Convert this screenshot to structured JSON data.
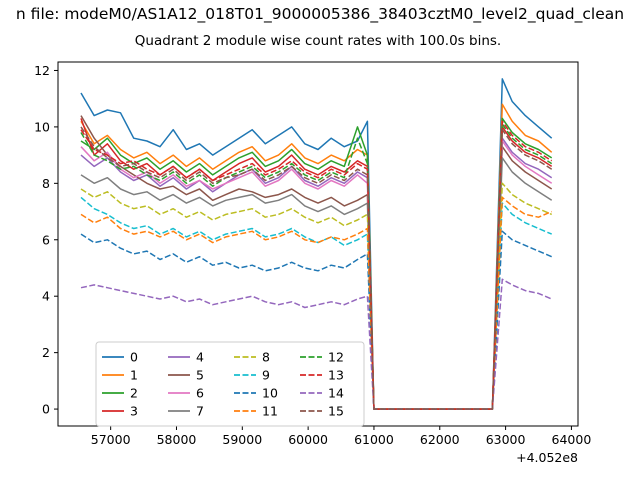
{
  "window": {
    "suptitle_visible_text": "n file: modeM0/AS1A12_018T01_9000005386_38403cztM0_level2_quad_clean"
  },
  "chart_data": {
    "type": "line",
    "title": "Quadrant 2 module wise count rates with 100.0s bins.",
    "xlabel": "",
    "ylabel": "",
    "x_offset_label": "+4.052e8",
    "xlim": [
      56200,
      64100
    ],
    "ylim": [
      -0.6,
      12.3
    ],
    "xticks": [
      57000,
      58000,
      59000,
      60000,
      61000,
      62000,
      63000,
      64000
    ],
    "yticks": [
      0,
      2,
      4,
      6,
      8,
      10,
      12
    ],
    "grid": false,
    "legend": {
      "position": "lower left inside",
      "columns": 4,
      "rows": 4
    },
    "x": [
      56550,
      56750,
      56950,
      57150,
      57350,
      57550,
      57750,
      57950,
      58150,
      58350,
      58550,
      58750,
      58950,
      59150,
      59350,
      59550,
      59750,
      59950,
      60150,
      60350,
      60550,
      60750,
      60900,
      61000,
      61500,
      62000,
      62500,
      62800,
      62950,
      63100,
      63300,
      63500,
      63700
    ],
    "series": [
      {
        "name": "0",
        "color": "#1f77b4",
        "dashed": false,
        "values": [
          11.2,
          10.4,
          10.6,
          10.5,
          9.6,
          9.5,
          9.3,
          9.9,
          9.2,
          9.4,
          9.0,
          9.3,
          9.6,
          9.9,
          9.4,
          9.7,
          10.0,
          9.4,
          9.2,
          9.6,
          9.3,
          9.5,
          10.2,
          0,
          0,
          0,
          0,
          0,
          11.7,
          10.9,
          10.4,
          10.0,
          9.6
        ]
      },
      {
        "name": "1",
        "color": "#ff7f0e",
        "dashed": false,
        "values": [
          10.2,
          9.4,
          9.7,
          9.2,
          8.9,
          9.1,
          8.7,
          9.0,
          8.6,
          8.9,
          8.5,
          8.8,
          9.1,
          9.3,
          8.8,
          9.0,
          9.4,
          8.9,
          8.7,
          9.0,
          8.8,
          9.2,
          9.0,
          0,
          0,
          0,
          0,
          0,
          10.8,
          10.2,
          9.7,
          9.5,
          9.1
        ]
      },
      {
        "name": "2",
        "color": "#2ca02c",
        "dashed": false,
        "values": [
          9.5,
          9.2,
          9.6,
          9.0,
          8.7,
          8.9,
          8.5,
          8.8,
          8.4,
          8.7,
          8.3,
          8.6,
          8.9,
          9.1,
          8.6,
          8.8,
          9.2,
          8.7,
          8.5,
          8.8,
          8.6,
          10.0,
          9.0,
          0,
          0,
          0,
          0,
          0,
          10.3,
          9.8,
          9.4,
          9.2,
          8.9
        ]
      },
      {
        "name": "3",
        "color": "#d62728",
        "dashed": false,
        "values": [
          10.3,
          9.0,
          9.4,
          8.8,
          8.5,
          8.7,
          8.3,
          8.6,
          8.2,
          8.5,
          8.1,
          8.4,
          8.7,
          8.9,
          8.4,
          8.6,
          9.0,
          8.5,
          8.3,
          8.6,
          8.4,
          8.8,
          8.6,
          0,
          0,
          0,
          0,
          0,
          10.0,
          9.5,
          9.1,
          8.9,
          8.6
        ]
      },
      {
        "name": "4",
        "color": "#9467bd",
        "dashed": false,
        "values": [
          9.0,
          8.6,
          8.9,
          8.4,
          8.1,
          8.3,
          7.9,
          8.2,
          7.8,
          8.1,
          7.7,
          8.0,
          8.3,
          8.5,
          8.0,
          8.2,
          8.6,
          8.1,
          7.9,
          8.2,
          8.0,
          8.4,
          8.2,
          0,
          0,
          0,
          0,
          0,
          9.6,
          9.1,
          8.7,
          8.5,
          8.2
        ]
      },
      {
        "name": "5",
        "color": "#8c564b",
        "dashed": false,
        "values": [
          10.4,
          9.6,
          9.0,
          8.6,
          8.3,
          8.0,
          7.8,
          7.9,
          7.6,
          7.8,
          7.4,
          7.6,
          7.8,
          7.7,
          7.5,
          7.6,
          7.8,
          7.5,
          7.3,
          7.5,
          7.2,
          7.4,
          7.6,
          0,
          0,
          0,
          0,
          0,
          9.3,
          8.8,
          8.4,
          8.1,
          7.8
        ]
      },
      {
        "name": "6",
        "color": "#e377c2",
        "dashed": false,
        "values": [
          9.3,
          8.8,
          9.1,
          8.5,
          8.2,
          8.4,
          8.0,
          8.3,
          7.9,
          8.1,
          7.8,
          8.0,
          8.2,
          8.4,
          7.9,
          8.1,
          8.5,
          8.0,
          7.8,
          8.1,
          7.9,
          8.3,
          8.0,
          0,
          0,
          0,
          0,
          0,
          9.5,
          9.0,
          8.6,
          8.3,
          8.0
        ]
      },
      {
        "name": "7",
        "color": "#7f7f7f",
        "dashed": false,
        "values": [
          8.3,
          8.0,
          8.2,
          7.8,
          7.6,
          7.7,
          7.4,
          7.6,
          7.3,
          7.5,
          7.2,
          7.4,
          7.5,
          7.6,
          7.3,
          7.4,
          7.6,
          7.2,
          7.0,
          7.2,
          6.9,
          7.1,
          7.3,
          0,
          0,
          0,
          0,
          0,
          8.9,
          8.4,
          8.0,
          7.7,
          7.4
        ]
      },
      {
        "name": "8",
        "color": "#bcbd22",
        "dashed": true,
        "values": [
          7.8,
          7.5,
          7.7,
          7.3,
          7.1,
          7.2,
          6.9,
          7.1,
          6.8,
          7.0,
          6.7,
          6.9,
          7.0,
          7.1,
          6.8,
          6.9,
          7.1,
          6.8,
          6.6,
          6.8,
          6.5,
          6.7,
          6.9,
          0,
          0,
          0,
          0,
          0,
          8.0,
          7.6,
          7.3,
          7.1,
          6.9
        ]
      },
      {
        "name": "9",
        "color": "#17becf",
        "dashed": true,
        "values": [
          7.5,
          7.1,
          6.9,
          6.6,
          6.4,
          6.5,
          6.2,
          6.4,
          6.1,
          6.3,
          6.0,
          6.2,
          6.3,
          6.4,
          6.1,
          6.2,
          6.4,
          6.1,
          5.9,
          6.1,
          5.8,
          6.0,
          6.2,
          0,
          0,
          0,
          0,
          0,
          7.3,
          6.9,
          6.6,
          6.4,
          6.2
        ]
      },
      {
        "name": "10",
        "color": "#1f77b4",
        "dashed": true,
        "values": [
          6.2,
          5.9,
          6.0,
          5.7,
          5.5,
          5.6,
          5.3,
          5.5,
          5.2,
          5.4,
          5.1,
          5.2,
          5.0,
          5.1,
          4.9,
          5.0,
          5.2,
          5.0,
          4.9,
          5.1,
          5.0,
          5.3,
          5.5,
          0,
          0,
          0,
          0,
          0,
          6.3,
          6.0,
          5.8,
          5.6,
          5.4
        ]
      },
      {
        "name": "11",
        "color": "#ff7f0e",
        "dashed": true,
        "values": [
          6.9,
          6.6,
          6.8,
          6.4,
          6.2,
          6.3,
          6.1,
          6.3,
          6.0,
          6.2,
          5.9,
          6.1,
          6.2,
          6.3,
          6.0,
          6.1,
          6.3,
          6.0,
          5.9,
          6.1,
          6.0,
          6.2,
          6.4,
          0,
          0,
          0,
          0,
          0,
          7.5,
          7.2,
          6.9,
          6.8,
          7.0
        ]
      },
      {
        "name": "12",
        "color": "#2ca02c",
        "dashed": true,
        "values": [
          9.8,
          9.0,
          8.8,
          8.5,
          8.6,
          8.3,
          8.1,
          8.4,
          8.0,
          8.3,
          7.9,
          8.2,
          8.4,
          8.6,
          8.2,
          8.4,
          8.7,
          8.3,
          8.1,
          8.4,
          8.2,
          9.6,
          8.7,
          0,
          0,
          0,
          0,
          0,
          10.1,
          9.6,
          9.2,
          9.0,
          8.7
        ]
      },
      {
        "name": "13",
        "color": "#d62728",
        "dashed": true,
        "values": [
          9.9,
          9.2,
          9.0,
          8.7,
          8.8,
          8.5,
          8.3,
          8.6,
          8.2,
          8.5,
          8.1,
          8.3,
          8.5,
          8.7,
          8.3,
          8.5,
          8.8,
          8.4,
          8.2,
          8.5,
          8.3,
          8.7,
          8.5,
          0,
          0,
          0,
          0,
          0,
          10.2,
          9.7,
          9.3,
          9.1,
          8.8
        ]
      },
      {
        "name": "14",
        "color": "#9467bd",
        "dashed": true,
        "values": [
          4.3,
          4.4,
          4.3,
          4.2,
          4.1,
          4.0,
          3.9,
          4.0,
          3.8,
          3.9,
          3.7,
          3.8,
          3.9,
          4.0,
          3.8,
          3.7,
          3.8,
          3.6,
          3.7,
          3.8,
          3.7,
          3.9,
          4.0,
          0,
          0,
          0,
          0,
          0,
          4.6,
          4.4,
          4.2,
          4.1,
          3.9
        ]
      },
      {
        "name": "15",
        "color": "#8c564b",
        "dashed": true,
        "values": [
          10.0,
          9.3,
          8.9,
          8.6,
          8.7,
          8.4,
          8.2,
          8.5,
          8.1,
          8.4,
          8.0,
          8.2,
          8.3,
          8.5,
          8.1,
          8.3,
          8.6,
          8.2,
          8.0,
          8.3,
          8.1,
          8.5,
          8.3,
          0,
          0,
          0,
          0,
          0,
          9.9,
          9.4,
          9.0,
          8.8,
          8.5
        ]
      }
    ]
  }
}
